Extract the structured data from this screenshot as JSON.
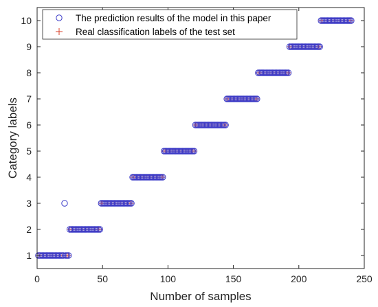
{
  "chart_data": {
    "type": "scatter",
    "xlabel": "Number of samples",
    "ylabel": "Category labels",
    "xlim": [
      0,
      250
    ],
    "ylim": [
      0.5,
      10.5
    ],
    "x_ticks": [
      0,
      50,
      100,
      150,
      200,
      250
    ],
    "y_ticks": [
      1,
      2,
      3,
      4,
      5,
      6,
      7,
      8,
      9,
      10
    ],
    "grid": false,
    "legend_position": "top-left",
    "samples_per_class": 24,
    "total_samples": 240,
    "series": [
      {
        "name": "The prediction results of the model in this paper",
        "marker": "circle",
        "color": "#3b3bc8",
        "note_x_range": [
          1,
          240
        ],
        "values": "same as real labels except sample 21",
        "outliers": [
          {
            "x": 21,
            "y": 3
          }
        ]
      },
      {
        "name": "Real classification labels of the test set",
        "marker": "plus",
        "color": "#d9402a",
        "segments": [
          {
            "label": 1,
            "x_start": 1,
            "x_end": 24
          },
          {
            "label": 2,
            "x_start": 25,
            "x_end": 48
          },
          {
            "label": 3,
            "x_start": 49,
            "x_end": 72
          },
          {
            "label": 4,
            "x_start": 73,
            "x_end": 96
          },
          {
            "label": 5,
            "x_start": 97,
            "x_end": 120
          },
          {
            "label": 6,
            "x_start": 121,
            "x_end": 144
          },
          {
            "label": 7,
            "x_start": 145,
            "x_end": 168
          },
          {
            "label": 8,
            "x_start": 169,
            "x_end": 192
          },
          {
            "label": 9,
            "x_start": 193,
            "x_end": 216
          },
          {
            "label": 10,
            "x_start": 217,
            "x_end": 240
          }
        ]
      }
    ]
  }
}
